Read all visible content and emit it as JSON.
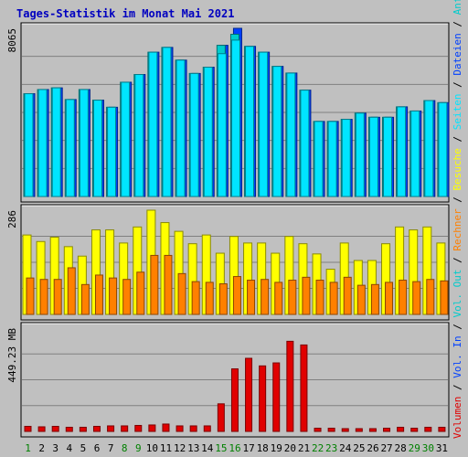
{
  "title": "Tages-Statistik im Monat Mai 2021",
  "colors": {
    "background": "#c0c0c0",
    "title": "#0000c0",
    "anfragen": "#00cccc",
    "dateien": "#0040ff",
    "seiten": "#00e5ff",
    "besuche": "#ffff00",
    "rechner": "#ff8000",
    "volumen_in": "#e00000",
    "weekday_label": "#000000",
    "weekend_label": "#008000"
  },
  "chart_data": [
    {
      "type": "bar",
      "name": "top",
      "ylabel": "8065",
      "ylim": [
        0,
        8065
      ],
      "grid": true,
      "x": [
        1,
        2,
        3,
        4,
        5,
        6,
        7,
        8,
        9,
        10,
        11,
        12,
        13,
        14,
        15,
        16,
        17,
        18,
        19,
        20,
        21,
        22,
        23,
        24,
        25,
        26,
        27,
        28,
        29,
        30,
        31
      ],
      "weekend_days": [
        1,
        8,
        9,
        15,
        16,
        22,
        23,
        29,
        30
      ],
      "series": [
        {
          "name": "Anfragen",
          "color_key": "anfragen",
          "values": [
            4930,
            5130,
            5210,
            4650,
            5130,
            4620,
            4280,
            5480,
            5850,
            6920,
            7150,
            6540,
            5900,
            6200,
            7250,
            7780,
            7200,
            6920,
            6240,
            5920,
            5100,
            3600,
            3600,
            3700,
            4000,
            3800,
            3800,
            4300,
            4100,
            4600,
            4500
          ]
        },
        {
          "name": "Dateien",
          "color_key": "dateien",
          "values": [
            4930,
            5130,
            5210,
            4650,
            5130,
            4620,
            4280,
            5480,
            5850,
            6920,
            7150,
            6540,
            5900,
            6200,
            7250,
            8065,
            7200,
            6920,
            6240,
            5920,
            5100,
            3600,
            3600,
            3700,
            4000,
            3800,
            3800,
            4300,
            4100,
            4600,
            4500
          ]
        },
        {
          "name": "Seiten",
          "color_key": "seiten",
          "values": [
            4930,
            5130,
            5210,
            4650,
            5130,
            4620,
            4280,
            5480,
            5850,
            6920,
            7150,
            6540,
            5900,
            6200,
            6850,
            7500,
            7200,
            6920,
            6240,
            5920,
            5100,
            3600,
            3600,
            3700,
            4000,
            3800,
            3800,
            4300,
            4100,
            4600,
            4500
          ]
        }
      ]
    },
    {
      "type": "bar",
      "name": "middle",
      "ylabel": "286",
      "ylim": [
        0,
        286
      ],
      "grid": true,
      "x": [
        1,
        2,
        3,
        4,
        5,
        6,
        7,
        8,
        9,
        10,
        11,
        12,
        13,
        14,
        15,
        16,
        17,
        18,
        19,
        20,
        21,
        22,
        23,
        24,
        25,
        26,
        27,
        28,
        29,
        30,
        31
      ],
      "series": [
        {
          "name": "Besuche",
          "color_key": "besuche",
          "values": [
            218,
            200,
            212,
            186,
            160,
            232,
            232,
            196,
            240,
            286,
            252,
            228,
            194,
            218,
            168,
            214,
            196,
            196,
            168,
            214,
            194,
            166,
            124,
            196,
            148,
            148,
            194,
            240,
            232,
            240,
            196
          ]
        },
        {
          "name": "Rechner",
          "color_key": "rechner",
          "values": [
            100,
            96,
            96,
            128,
            82,
            108,
            100,
            96,
            116,
            162,
            162,
            112,
            90,
            88,
            84,
            104,
            94,
            96,
            88,
            94,
            102,
            94,
            88,
            102,
            80,
            82,
            88,
            94,
            90,
            96,
            92
          ]
        }
      ]
    },
    {
      "type": "bar",
      "name": "bottom",
      "ylabel": "449.23 MB",
      "ylim": [
        0,
        449.23
      ],
      "grid": true,
      "x": [
        1,
        2,
        3,
        4,
        5,
        6,
        7,
        8,
        9,
        10,
        11,
        12,
        13,
        14,
        15,
        16,
        17,
        18,
        19,
        20,
        21,
        22,
        23,
        24,
        25,
        26,
        27,
        28,
        29,
        30,
        31
      ],
      "series": [
        {
          "name": "Volumen",
          "color_key": "volumen_in",
          "values": [
            22,
            20,
            22,
            18,
            18,
            22,
            24,
            24,
            26,
            28,
            32,
            24,
            24,
            24,
            120,
            272,
            318,
            285,
            298,
            392,
            376,
            14,
            14,
            12,
            12,
            12,
            14,
            18,
            14,
            18,
            18
          ]
        }
      ]
    }
  ],
  "legend_right": [
    {
      "text": "Anfragen",
      "color_key": "anfragen"
    },
    {
      "text": "Dateien",
      "color_key": "dateien"
    },
    {
      "text": "Seiten",
      "color_key": "seiten"
    },
    {
      "text": "Besuche",
      "color_key": "besuche"
    },
    {
      "text": "Rechner",
      "color_key": "rechner"
    },
    {
      "text": "Vol. Out",
      "color_key": "anfragen"
    },
    {
      "text": "Vol. In",
      "color_key": "dateien"
    },
    {
      "text": "Volumen",
      "color_key": "volumen_in"
    }
  ]
}
